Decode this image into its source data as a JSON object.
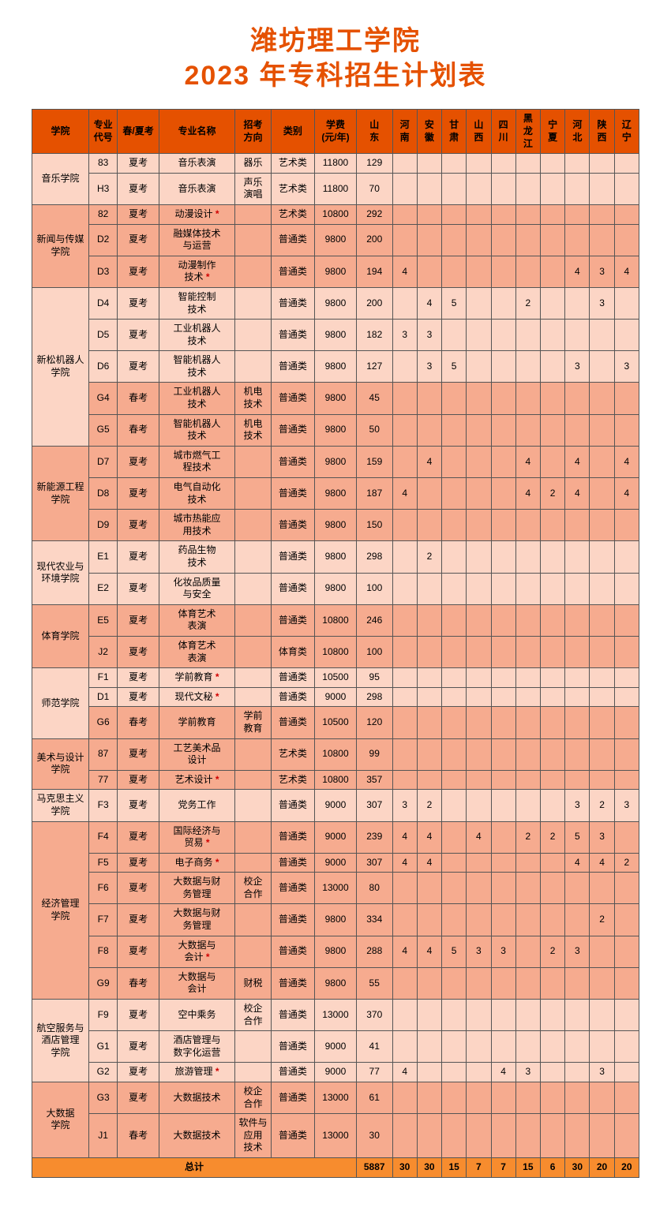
{
  "title_line1": "潍坊理工学院",
  "title_line2": "2023 年专科招生计划表",
  "headers": {
    "college": "学院",
    "code": "专业\n代号",
    "exam": "春/夏考",
    "major": "专业名称",
    "dir": "招考\n方向",
    "cat": "类别",
    "fee": "学费\n(元/年)",
    "sd": "山\n东",
    "hn": "河\n南",
    "ah": "安\n徽",
    "gs": "甘\n肃",
    "sx": "山\n西",
    "sc": "四\n川",
    "hlj": "黑\n龙\n江",
    "nx": "宁\n夏",
    "hb": "河\n北",
    "shx": "陕\n西",
    "ln": "辽\n宁"
  },
  "groups": [
    {
      "college": "音乐学院",
      "rows": [
        {
          "code": "83",
          "exam": "夏考",
          "major": "音乐表演",
          "dir": "器乐",
          "cat": "艺术类",
          "fee": "11800",
          "v": [
            "129",
            "",
            "",
            "",
            "",
            "",
            "",
            "",
            "",
            "",
            ""
          ]
        },
        {
          "code": "H3",
          "exam": "夏考",
          "major": "音乐表演",
          "dir": "声乐\n演唱",
          "cat": "艺术类",
          "fee": "11800",
          "v": [
            "70",
            "",
            "",
            "",
            "",
            "",
            "",
            "",
            "",
            "",
            ""
          ]
        }
      ]
    },
    {
      "college": "新闻与传媒\n学院",
      "rows": [
        {
          "code": "82",
          "exam": "夏考",
          "major": "动漫设计",
          "star": true,
          "dir": "",
          "cat": "艺术类",
          "fee": "10800",
          "v": [
            "292",
            "",
            "",
            "",
            "",
            "",
            "",
            "",
            "",
            "",
            ""
          ]
        },
        {
          "code": "D2",
          "exam": "夏考",
          "major": "融媒体技术\n与运营",
          "dir": "",
          "cat": "普通类",
          "fee": "9800",
          "v": [
            "200",
            "",
            "",
            "",
            "",
            "",
            "",
            "",
            "",
            "",
            ""
          ]
        },
        {
          "code": "D3",
          "exam": "夏考",
          "major": "动漫制作\n技术",
          "star": true,
          "dir": "",
          "cat": "普通类",
          "fee": "9800",
          "v": [
            "194",
            "4",
            "",
            "",
            "",
            "",
            "",
            "",
            "4",
            "3",
            "4"
          ]
        }
      ]
    },
    {
      "college": "新松机器人\n学院",
      "rows": [
        {
          "code": "D4",
          "exam": "夏考",
          "major": "智能控制\n技术",
          "dir": "",
          "cat": "普通类",
          "fee": "9800",
          "v": [
            "200",
            "",
            "4",
            "5",
            "",
            "",
            "2",
            "",
            "",
            "3",
            ""
          ]
        },
        {
          "code": "D5",
          "exam": "夏考",
          "major": "工业机器人\n技术",
          "dir": "",
          "cat": "普通类",
          "fee": "9800",
          "v": [
            "182",
            "3",
            "3",
            "",
            "",
            "",
            "",
            "",
            "",
            "",
            ""
          ]
        },
        {
          "code": "D6",
          "exam": "夏考",
          "major": "智能机器人\n技术",
          "dir": "",
          "cat": "普通类",
          "fee": "9800",
          "v": [
            "127",
            "",
            "3",
            "5",
            "",
            "",
            "",
            "",
            "3",
            "",
            "3"
          ]
        },
        {
          "code": "G4",
          "exam": "春考",
          "major": "工业机器人\n技术",
          "dir": "机电\n技术",
          "cat": "普通类",
          "fee": "9800",
          "v": [
            "45",
            "",
            "",
            "",
            "",
            "",
            "",
            "",
            "",
            "",
            ""
          ],
          "sp": true
        },
        {
          "code": "G5",
          "exam": "春考",
          "major": "智能机器人\n技术",
          "dir": "机电\n技术",
          "cat": "普通类",
          "fee": "9800",
          "v": [
            "50",
            "",
            "",
            "",
            "",
            "",
            "",
            "",
            "",
            "",
            ""
          ],
          "sp": true
        }
      ]
    },
    {
      "college": "新能源工程\n学院",
      "rows": [
        {
          "code": "D7",
          "exam": "夏考",
          "major": "城市燃气工\n程技术",
          "dir": "",
          "cat": "普通类",
          "fee": "9800",
          "v": [
            "159",
            "",
            "4",
            "",
            "",
            "",
            "4",
            "",
            "4",
            "",
            "4"
          ]
        },
        {
          "code": "D8",
          "exam": "夏考",
          "major": "电气自动化\n技术",
          "dir": "",
          "cat": "普通类",
          "fee": "9800",
          "v": [
            "187",
            "4",
            "",
            "",
            "",
            "",
            "4",
            "2",
            "4",
            "",
            "4"
          ]
        },
        {
          "code": "D9",
          "exam": "夏考",
          "major": "城市热能应\n用技术",
          "dir": "",
          "cat": "普通类",
          "fee": "9800",
          "v": [
            "150",
            "",
            "",
            "",
            "",
            "",
            "",
            "",
            "",
            "",
            ""
          ]
        }
      ]
    },
    {
      "college": "现代农业与\n环境学院",
      "rows": [
        {
          "code": "E1",
          "exam": "夏考",
          "major": "药品生物\n技术",
          "dir": "",
          "cat": "普通类",
          "fee": "9800",
          "v": [
            "298",
            "",
            "2",
            "",
            "",
            "",
            "",
            "",
            "",
            "",
            ""
          ]
        },
        {
          "code": "E2",
          "exam": "夏考",
          "major": "化妆品质量\n与安全",
          "dir": "",
          "cat": "普通类",
          "fee": "9800",
          "v": [
            "100",
            "",
            "",
            "",
            "",
            "",
            "",
            "",
            "",
            "",
            ""
          ]
        }
      ]
    },
    {
      "college": "体育学院",
      "rows": [
        {
          "code": "E5",
          "exam": "夏考",
          "major": "体育艺术\n表演",
          "dir": "",
          "cat": "普通类",
          "fee": "10800",
          "v": [
            "246",
            "",
            "",
            "",
            "",
            "",
            "",
            "",
            "",
            "",
            ""
          ]
        },
        {
          "code": "J2",
          "exam": "夏考",
          "major": "体育艺术\n表演",
          "dir": "",
          "cat": "体育类",
          "fee": "10800",
          "v": [
            "100",
            "",
            "",
            "",
            "",
            "",
            "",
            "",
            "",
            "",
            ""
          ]
        }
      ]
    },
    {
      "college": "师范学院",
      "rows": [
        {
          "code": "F1",
          "exam": "夏考",
          "major": "学前教育",
          "star": true,
          "dir": "",
          "cat": "普通类",
          "fee": "10500",
          "v": [
            "95",
            "",
            "",
            "",
            "",
            "",
            "",
            "",
            "",
            "",
            ""
          ]
        },
        {
          "code": "D1",
          "exam": "夏考",
          "major": "现代文秘",
          "star": true,
          "dir": "",
          "cat": "普通类",
          "fee": "9000",
          "v": [
            "298",
            "",
            "",
            "",
            "",
            "",
            "",
            "",
            "",
            "",
            ""
          ]
        },
        {
          "code": "G6",
          "exam": "春考",
          "major": "学前教育",
          "dir": "学前\n教育",
          "cat": "普通类",
          "fee": "10500",
          "v": [
            "120",
            "",
            "",
            "",
            "",
            "",
            "",
            "",
            "",
            "",
            ""
          ],
          "sp": true
        }
      ]
    },
    {
      "college": "美术与设计\n学院",
      "rows": [
        {
          "code": "87",
          "exam": "夏考",
          "major": "工艺美术品\n设计",
          "dir": "",
          "cat": "艺术类",
          "fee": "10800",
          "v": [
            "99",
            "",
            "",
            "",
            "",
            "",
            "",
            "",
            "",
            "",
            ""
          ]
        },
        {
          "code": "77",
          "exam": "夏考",
          "major": "艺术设计",
          "star": true,
          "dir": "",
          "cat": "艺术类",
          "fee": "10800",
          "v": [
            "357",
            "",
            "",
            "",
            "",
            "",
            "",
            "",
            "",
            "",
            ""
          ]
        }
      ]
    },
    {
      "college": "马克思主义\n学院",
      "rows": [
        {
          "code": "F3",
          "exam": "夏考",
          "major": "党务工作",
          "dir": "",
          "cat": "普通类",
          "fee": "9000",
          "v": [
            "307",
            "3",
            "2",
            "",
            "",
            "",
            "",
            "",
            "3",
            "2",
            "3"
          ]
        }
      ]
    },
    {
      "college": "经济管理\n学院",
      "rows": [
        {
          "code": "F4",
          "exam": "夏考",
          "major": "国际经济与\n贸易",
          "star": true,
          "dir": "",
          "cat": "普通类",
          "fee": "9000",
          "v": [
            "239",
            "4",
            "4",
            "",
            "4",
            "",
            "2",
            "2",
            "5",
            "3",
            ""
          ]
        },
        {
          "code": "F5",
          "exam": "夏考",
          "major": "电子商务",
          "star": true,
          "dir": "",
          "cat": "普通类",
          "fee": "9000",
          "v": [
            "307",
            "4",
            "4",
            "",
            "",
            "",
            "",
            "",
            "4",
            "4",
            "2"
          ]
        },
        {
          "code": "F6",
          "exam": "夏考",
          "major": "大数据与财\n务管理",
          "dir": "校企\n合作",
          "cat": "普通类",
          "fee": "13000",
          "v": [
            "80",
            "",
            "",
            "",
            "",
            "",
            "",
            "",
            "",
            "",
            ""
          ]
        },
        {
          "code": "F7",
          "exam": "夏考",
          "major": "大数据与财\n务管理",
          "dir": "",
          "cat": "普通类",
          "fee": "9800",
          "v": [
            "334",
            "",
            "",
            "",
            "",
            "",
            "",
            "",
            "",
            "2",
            ""
          ]
        },
        {
          "code": "F8",
          "exam": "夏考",
          "major": "大数据与\n会计",
          "star": true,
          "dir": "",
          "cat": "普通类",
          "fee": "9800",
          "v": [
            "288",
            "4",
            "4",
            "5",
            "3",
            "3",
            "",
            "2",
            "3",
            "",
            ""
          ]
        },
        {
          "code": "G9",
          "exam": "春考",
          "major": "大数据与\n会计",
          "dir": "财税",
          "cat": "普通类",
          "fee": "9800",
          "v": [
            "55",
            "",
            "",
            "",
            "",
            "",
            "",
            "",
            "",
            "",
            ""
          ],
          "sp": true
        }
      ]
    },
    {
      "college": "航空服务与\n酒店管理\n学院",
      "rows": [
        {
          "code": "F9",
          "exam": "夏考",
          "major": "空中乘务",
          "dir": "校企\n合作",
          "cat": "普通类",
          "fee": "13000",
          "v": [
            "370",
            "",
            "",
            "",
            "",
            "",
            "",
            "",
            "",
            "",
            ""
          ]
        },
        {
          "code": "G1",
          "exam": "夏考",
          "major": "酒店管理与\n数字化运营",
          "dir": "",
          "cat": "普通类",
          "fee": "9000",
          "v": [
            "41",
            "",
            "",
            "",
            "",
            "",
            "",
            "",
            "",
            "",
            ""
          ]
        },
        {
          "code": "G2",
          "exam": "夏考",
          "major": "旅游管理",
          "star": true,
          "dir": "",
          "cat": "普通类",
          "fee": "9000",
          "v": [
            "77",
            "4",
            "",
            "",
            "",
            "4",
            "3",
            "",
            "",
            "3",
            ""
          ]
        }
      ]
    },
    {
      "college": "大数据\n学院",
      "rows": [
        {
          "code": "G3",
          "exam": "夏考",
          "major": "大数据技术",
          "dir": "校企\n合作",
          "cat": "普通类",
          "fee": "13000",
          "v": [
            "61",
            "",
            "",
            "",
            "",
            "",
            "",
            "",
            "",
            "",
            ""
          ]
        },
        {
          "code": "J1",
          "exam": "春考",
          "major": "大数据技术",
          "dir": "软件与\n应用\n技术",
          "cat": "普通类",
          "fee": "13000",
          "v": [
            "30",
            "",
            "",
            "",
            "",
            "",
            "",
            "",
            "",
            "",
            ""
          ],
          "sp": true
        }
      ]
    }
  ],
  "total_label": "总计",
  "totals": [
    "5887",
    "30",
    "30",
    "15",
    "7",
    "7",
    "15",
    "6",
    "30",
    "20",
    "20"
  ]
}
